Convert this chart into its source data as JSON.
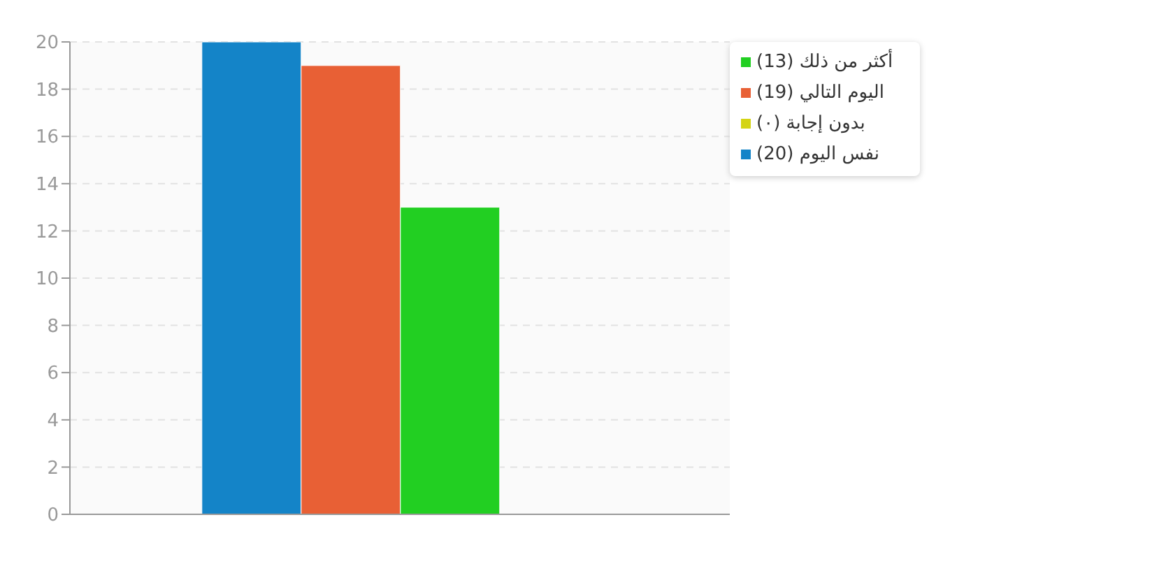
{
  "chart_data": {
    "type": "bar",
    "categories": [
      null
    ],
    "series": [
      {
        "name": "نفس اليوم (20)",
        "color": "#1484c8",
        "values": [
          20
        ]
      },
      {
        "name": "اليوم التالي (19)",
        "color": "#e86035",
        "values": [
          19
        ]
      },
      {
        "name": "أكثر من ذلك (13)",
        "color": "#22cf22",
        "values": [
          13
        ]
      },
      {
        "name": "بدون إجابة (٠)",
        "color": "#d4d414",
        "values": [
          0
        ]
      }
    ],
    "ylim": [
      0,
      20
    ],
    "yticks": [
      0,
      2,
      4,
      6,
      8,
      10,
      12,
      14,
      16,
      18,
      20
    ],
    "grid": "y",
    "legend": "top right"
  }
}
